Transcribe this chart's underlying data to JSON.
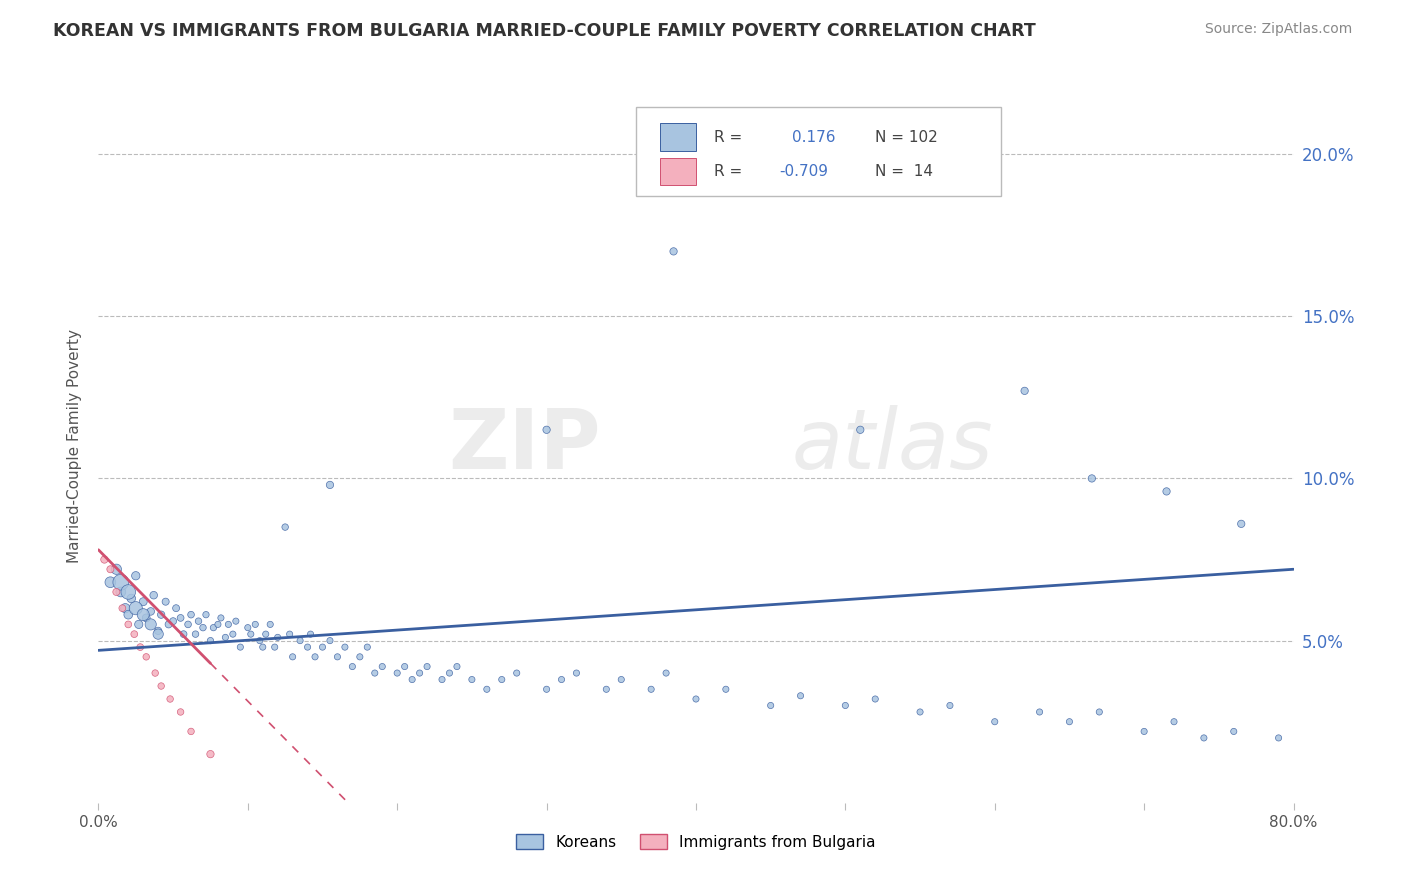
{
  "title": "KOREAN VS IMMIGRANTS FROM BULGARIA MARRIED-COUPLE FAMILY POVERTY CORRELATION CHART",
  "source": "Source: ZipAtlas.com",
  "ylabel": "Married-Couple Family Poverty",
  "watermark_zip": "ZIP",
  "watermark_atlas": "atlas",
  "legend_blue_label": "Koreans",
  "legend_pink_label": "Immigrants from Bulgaria",
  "legend_blue_R": "0.176",
  "legend_blue_N": "102",
  "legend_pink_R": "-0.709",
  "legend_pink_N": "14",
  "xlim": [
    0.0,
    0.8
  ],
  "ylim": [
    0.0,
    0.22
  ],
  "yticks": [
    0.05,
    0.1,
    0.15,
    0.2
  ],
  "ytick_labels": [
    "5.0%",
    "10.0%",
    "15.0%",
    "20.0%"
  ],
  "blue_scatter_color": "#a8c4e0",
  "blue_line_color": "#3a5fa0",
  "pink_scatter_color": "#f4b0be",
  "pink_line_color": "#d05070",
  "background_color": "#ffffff",
  "grid_color": "#bbbbbb",
  "koreans_x": [
    0.008,
    0.012,
    0.015,
    0.018,
    0.02,
    0.022,
    0.025,
    0.027,
    0.03,
    0.032,
    0.035,
    0.037,
    0.04,
    0.042,
    0.045,
    0.047,
    0.05,
    0.052,
    0.055,
    0.057,
    0.06,
    0.062,
    0.065,
    0.067,
    0.07,
    0.072,
    0.075,
    0.077,
    0.08,
    0.082,
    0.085,
    0.087,
    0.09,
    0.092,
    0.095,
    0.1,
    0.102,
    0.105,
    0.108,
    0.11,
    0.112,
    0.115,
    0.118,
    0.12,
    0.125,
    0.128,
    0.13,
    0.135,
    0.14,
    0.142,
    0.145,
    0.15,
    0.155,
    0.16,
    0.165,
    0.17,
    0.175,
    0.18,
    0.185,
    0.19,
    0.2,
    0.205,
    0.21,
    0.215,
    0.22,
    0.23,
    0.235,
    0.24,
    0.25,
    0.26,
    0.27,
    0.28,
    0.3,
    0.31,
    0.32,
    0.34,
    0.35,
    0.37,
    0.38,
    0.4,
    0.42,
    0.45,
    0.47,
    0.5,
    0.52,
    0.55,
    0.57,
    0.6,
    0.63,
    0.65,
    0.67,
    0.7,
    0.72,
    0.74,
    0.76,
    0.79,
    0.015,
    0.02,
    0.025,
    0.03,
    0.035,
    0.04
  ],
  "koreans_y": [
    0.068,
    0.072,
    0.065,
    0.06,
    0.058,
    0.063,
    0.07,
    0.055,
    0.062,
    0.057,
    0.059,
    0.064,
    0.053,
    0.058,
    0.062,
    0.055,
    0.056,
    0.06,
    0.057,
    0.052,
    0.055,
    0.058,
    0.052,
    0.056,
    0.054,
    0.058,
    0.05,
    0.054,
    0.055,
    0.057,
    0.051,
    0.055,
    0.052,
    0.056,
    0.048,
    0.054,
    0.052,
    0.055,
    0.05,
    0.048,
    0.052,
    0.055,
    0.048,
    0.051,
    0.085,
    0.052,
    0.045,
    0.05,
    0.048,
    0.052,
    0.045,
    0.048,
    0.05,
    0.045,
    0.048,
    0.042,
    0.045,
    0.048,
    0.04,
    0.042,
    0.04,
    0.042,
    0.038,
    0.04,
    0.042,
    0.038,
    0.04,
    0.042,
    0.038,
    0.035,
    0.038,
    0.04,
    0.035,
    0.038,
    0.04,
    0.035,
    0.038,
    0.035,
    0.04,
    0.032,
    0.035,
    0.03,
    0.033,
    0.03,
    0.032,
    0.028,
    0.03,
    0.025,
    0.028,
    0.025,
    0.028,
    0.022,
    0.025,
    0.02,
    0.022,
    0.02,
    0.068,
    0.065,
    0.06,
    0.058,
    0.055,
    0.052
  ],
  "koreans_size": [
    60,
    55,
    50,
    45,
    40,
    38,
    36,
    35,
    33,
    32,
    30,
    30,
    28,
    28,
    26,
    26,
    25,
    25,
    24,
    24,
    23,
    23,
    22,
    22,
    22,
    21,
    21,
    21,
    20,
    20,
    20,
    20,
    20,
    20,
    20,
    20,
    20,
    20,
    20,
    20,
    20,
    20,
    20,
    20,
    22,
    20,
    20,
    20,
    20,
    20,
    20,
    20,
    20,
    20,
    20,
    20,
    20,
    20,
    20,
    20,
    20,
    20,
    20,
    20,
    20,
    20,
    20,
    20,
    20,
    20,
    20,
    20,
    20,
    20,
    20,
    20,
    20,
    20,
    20,
    20,
    20,
    20,
    20,
    20,
    20,
    20,
    20,
    20,
    20,
    20,
    20,
    20,
    20,
    20,
    20,
    20,
    130,
    110,
    90,
    75,
    65,
    55
  ],
  "koreans_outliers_x": [
    0.385,
    0.62,
    0.51,
    0.665,
    0.715,
    0.765,
    0.155,
    0.3
  ],
  "koreans_outliers_y": [
    0.17,
    0.127,
    0.115,
    0.1,
    0.096,
    0.086,
    0.098,
    0.115
  ],
  "koreans_outliers_size": [
    28,
    28,
    28,
    28,
    28,
    28,
    28,
    28
  ],
  "bulgaria_x": [
    0.004,
    0.008,
    0.012,
    0.016,
    0.02,
    0.024,
    0.028,
    0.032,
    0.038,
    0.042,
    0.048,
    0.055,
    0.062,
    0.075
  ],
  "bulgaria_y": [
    0.075,
    0.072,
    0.065,
    0.06,
    0.055,
    0.052,
    0.048,
    0.045,
    0.04,
    0.036,
    0.032,
    0.028,
    0.022,
    0.015
  ],
  "bulgaria_size": [
    28,
    26,
    26,
    24,
    24,
    24,
    24,
    22,
    22,
    22,
    22,
    22,
    22,
    28
  ],
  "blue_trend_x0": 0.0,
  "blue_trend_y0": 0.047,
  "blue_trend_x1": 0.8,
  "blue_trend_y1": 0.072,
  "pink_trend_x0": 0.0,
  "pink_trend_y0": 0.078,
  "pink_trend_x1": 0.15,
  "pink_trend_y1": 0.008
}
